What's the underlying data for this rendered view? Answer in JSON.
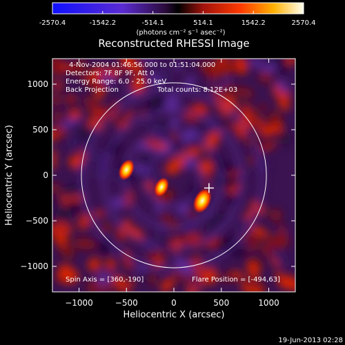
{
  "colorbar": {
    "ticks": [
      "-2570.4",
      "-1542.2",
      "-514.1",
      "514.1",
      "1542.2",
      "2570.4"
    ],
    "unit_label": "(photons cm⁻² s⁻¹ asec⁻²)",
    "range": [
      -2570.4,
      2570.4
    ]
  },
  "title": "Reconstructed RHESSI Image",
  "info": {
    "time_range": "4-Nov-2004 01:46:56.000 to 01:51:04.000",
    "detectors": "Detectors: 7F 8F 9F, Att 0",
    "energy": "Energy Range: 6.0 - 25.0 keV",
    "method": "Back Projection",
    "counts": "Total counts: 8.12E+03",
    "spin_axis": "Spin Axis = [360,-190]",
    "flare_position": "Flare Position = [-494,63]"
  },
  "axes": {
    "xlabel": "Heliocentric X (arcsec)",
    "ylabel": "Heliocentric Y (arcsec)",
    "xlim": [
      -1280,
      1280
    ],
    "ylim": [
      -1280,
      1280
    ],
    "xticks": [
      -1000,
      -500,
      0,
      500,
      1000
    ],
    "yticks": [
      -1000,
      -500,
      0,
      500,
      1000
    ],
    "limb_radius_arcsec": 975,
    "marker_position": [
      370,
      -140
    ]
  },
  "sources": [
    {
      "x": 300,
      "y": -280,
      "peak": 2570
    },
    {
      "x": -500,
      "y": 60,
      "peak": 2100
    },
    {
      "x": -130,
      "y": -130,
      "peak": 1900
    }
  ],
  "timestamp": "19-Jun-2013 02:28",
  "colors": {
    "limb": "#ffffff",
    "marker": "#ffffff"
  }
}
